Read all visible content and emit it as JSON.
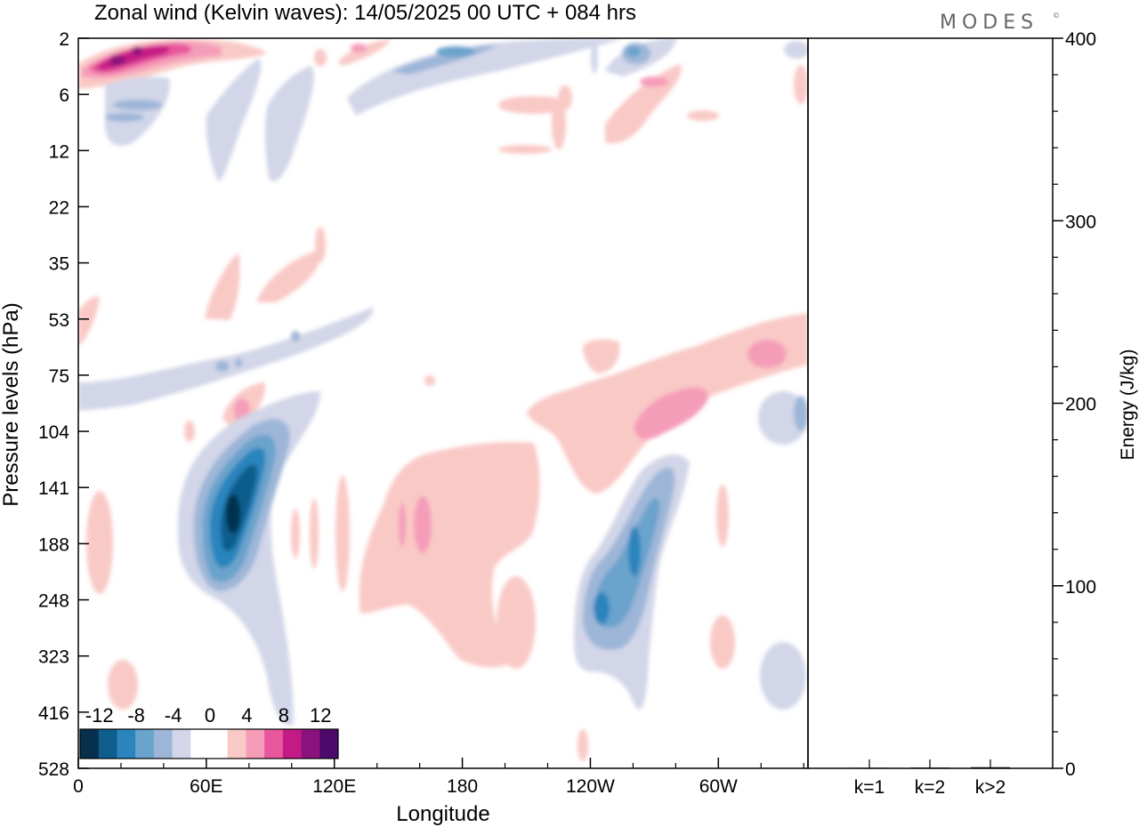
{
  "title": "Zonal wind (Kelvin waves):  14/05/2025  00 UTC  + 084 hrs",
  "logo": "MODES",
  "logo_mark": "©",
  "chart_data": [
    {
      "type": "heatmap",
      "title": "Zonal wind (Kelvin waves):  14/05/2025  00 UTC  + 084 hrs",
      "xlabel": "Longitude",
      "ylabel": "Pressure levels (hPa)",
      "x_ticks": [
        "0",
        "60E",
        "120E",
        "180",
        "120W",
        "60W"
      ],
      "x_tick_values": [
        0,
        60,
        120,
        180,
        240,
        300
      ],
      "x_range": [
        0,
        342
      ],
      "y_ticks": [
        "2",
        "6",
        "12",
        "22",
        "35",
        "53",
        "75",
        "104",
        "141",
        "188",
        "248",
        "323",
        "416",
        "528"
      ],
      "y_range": [
        "2",
        "528"
      ],
      "colorbar": {
        "labels": [
          "-12",
          "-8",
          "-4",
          "0",
          "4",
          "8",
          "12"
        ],
        "colors": [
          "#06304d",
          "#0f5d8c",
          "#2b84bd",
          "#6aa3cc",
          "#9db6d8",
          "#d2d6e8",
          "#ffffff",
          "#ffffff",
          "#f9c9c6",
          "#f59cb9",
          "#e8579e",
          "#c41a85",
          "#8c127e",
          "#4d0a6b"
        ]
      },
      "features": [
        {
          "sign": "positive",
          "lon": [
            0,
            40
          ],
          "level": [
            "2",
            "6"
          ],
          "peak": 12
        },
        {
          "sign": "negative",
          "lon": [
            70,
            90
          ],
          "level": [
            "104",
            "248"
          ],
          "peak": -12
        },
        {
          "sign": "negative",
          "lon": [
            230,
            270
          ],
          "level": [
            "141",
            "323"
          ],
          "peak": -8
        },
        {
          "sign": "positive",
          "lon": [
            140,
            220
          ],
          "level": [
            "104",
            "323"
          ],
          "peak": 4
        },
        {
          "sign": "positive",
          "lon": [
            230,
            342
          ],
          "level": [
            "53",
            "141"
          ],
          "peak": 8
        },
        {
          "sign": "negative",
          "lon": [
            130,
            260
          ],
          "level": [
            "2",
            "6"
          ],
          "peak": -8
        }
      ]
    },
    {
      "type": "bar",
      "categories": [
        "k=1",
        "k=2",
        "k>2"
      ],
      "values": [
        0.3,
        0.4,
        0.6
      ],
      "ylabel": "Energy (J/kg)",
      "ylim": [
        0,
        400
      ],
      "y_ticks": [
        "0",
        "100",
        "200",
        "300",
        "400"
      ]
    }
  ]
}
